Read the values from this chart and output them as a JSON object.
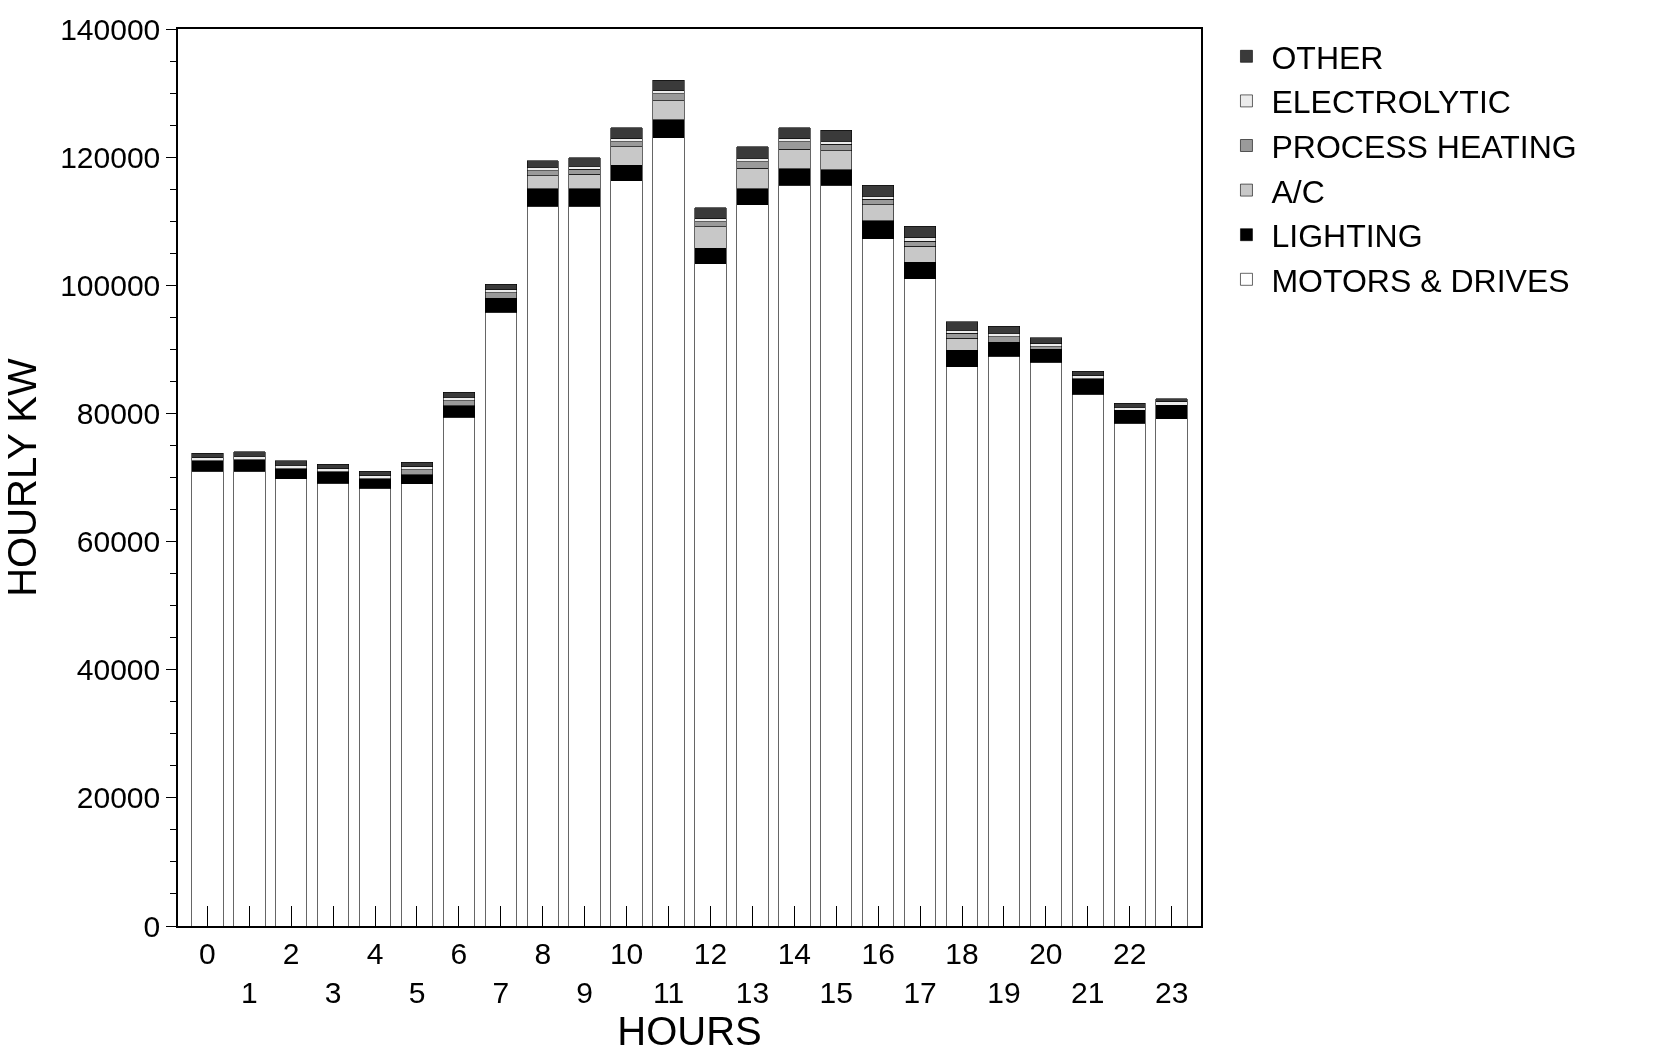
{
  "chart_data": {
    "type": "bar",
    "stacked": true,
    "xlabel": "HOURS",
    "ylabel": "HOURLY KW",
    "categories": [
      "0",
      "1",
      "2",
      "3",
      "4",
      "5",
      "6",
      "7",
      "8",
      "9",
      "10",
      "11",
      "12",
      "13",
      "14",
      "15",
      "16",
      "17",
      "18",
      "19",
      "20",
      "21",
      "22",
      "23"
    ],
    "series": [
      {
        "name": "MOTORS & DRIVES",
        "color": "#ffffff",
        "values": [
          71000,
          71000,
          69800,
          69100,
          68300,
          69000,
          79400,
          95800,
          112300,
          112300,
          116300,
          123000,
          103400,
          112600,
          115600,
          115600,
          107300,
          101000,
          87300,
          88900,
          88000,
          83000,
          78500,
          79200
        ]
      },
      {
        "name": "LIGHTING",
        "color": "#000000",
        "values": [
          1600,
          1800,
          1600,
          1800,
          1500,
          1400,
          1800,
          2200,
          2800,
          2800,
          2400,
          2800,
          2400,
          2500,
          2600,
          2400,
          2800,
          2600,
          2600,
          2200,
          2000,
          2400,
          2000,
          2100
        ]
      },
      {
        "name": "A/C",
        "color": "#c8c8c8",
        "values": [
          0,
          0,
          0,
          0,
          0,
          0,
          0,
          0,
          2000,
          2200,
          2900,
          3000,
          3300,
          3200,
          3000,
          3000,
          2500,
          2500,
          1800,
          0,
          0,
          0,
          0,
          0
        ]
      },
      {
        "name": "PROCESS HEATING",
        "color": "#9a9a9a",
        "values": [
          0,
          0,
          0,
          0,
          0,
          800,
          800,
          800,
          800,
          800,
          800,
          1100,
          800,
          1000,
          1200,
          1000,
          800,
          800,
          800,
          900,
          400,
          0,
          0,
          0
        ]
      },
      {
        "name": "ELECTROLYTIC",
        "color": "#ececec",
        "values": [
          500,
          500,
          500,
          500,
          500,
          500,
          500,
          500,
          500,
          500,
          500,
          500,
          500,
          500,
          500,
          500,
          500,
          500,
          500,
          500,
          500,
          500,
          500,
          500
        ]
      },
      {
        "name": "OTHER",
        "color": "#3a3a3a",
        "values": [
          700,
          700,
          700,
          700,
          700,
          700,
          800,
          900,
          1000,
          1300,
          1700,
          1600,
          1700,
          1800,
          1700,
          1700,
          1700,
          1800,
          1300,
          1100,
          900,
          700,
          600,
          500
        ]
      }
    ],
    "ylim": [
      0,
      140000
    ],
    "yticks": [
      0,
      20000,
      40000,
      60000,
      80000,
      100000,
      120000,
      140000
    ],
    "grid": false,
    "legend": "top right"
  }
}
